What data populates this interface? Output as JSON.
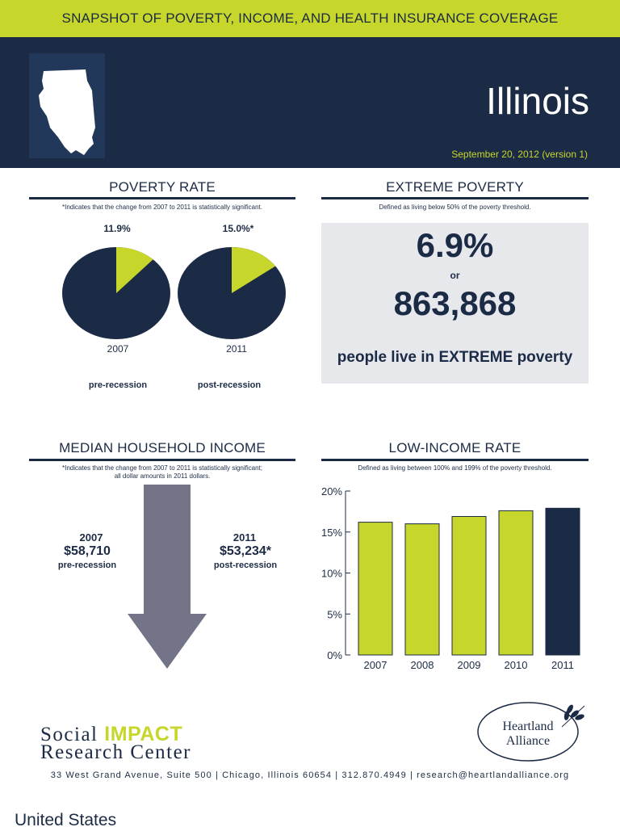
{
  "banner": {
    "title": "SNAPSHOT OF POVERTY, INCOME, AND HEALTH INSURANCE COVERAGE"
  },
  "header": {
    "state": "Illinois",
    "date": "September 20, 2012 (version 1)"
  },
  "poverty_rate": {
    "title": "POVERTY RATE",
    "note": "*Indicates that the change from 2007 to 2011 is statistically significant.",
    "pies": [
      {
        "label": "11.9%",
        "year": "2007",
        "value": 11.9,
        "sub": "pre-recession"
      },
      {
        "label": "15.0%*",
        "year": "2011",
        "value": 15.0,
        "sub": "post-recession"
      }
    ]
  },
  "extreme_poverty": {
    "title": "EXTREME POVERTY",
    "note": "Defined as living below 50% of the poverty threshold.",
    "percent": "6.9%",
    "or": "or",
    "count": "863,868",
    "text": "people live in EXTREME poverty"
  },
  "median_income": {
    "title": "MEDIAN HOUSEHOLD INCOME",
    "note_line1": "*Indicates that the change from 2007 to 2011 is statistically significant;",
    "note_line2": "all dollar amounts in 2011 dollars.",
    "before": {
      "year": "2007",
      "value": "$58,710",
      "sub": "pre-recession"
    },
    "after": {
      "year": "2011",
      "value": "$53,234*",
      "sub": "post-recession"
    }
  },
  "low_income": {
    "title": "LOW-INCOME RATE",
    "note": "Defined as living between 100% and 199% of the poverty threshold."
  },
  "chart_data": {
    "type": "bar",
    "categories": [
      "2007",
      "2008",
      "2009",
      "2010",
      "2011"
    ],
    "values": [
      16.2,
      16.0,
      16.9,
      17.6,
      17.9
    ],
    "ylim": [
      0,
      20
    ],
    "yticks": [
      "0%",
      "5%",
      "10%",
      "15%",
      "20%"
    ],
    "grid": false,
    "colors": {
      "default": "#c6d62a",
      "highlight": "#1c2b45"
    }
  },
  "footer": {
    "org1_part1": "Social ",
    "org1_part2": "IMPACT",
    "org1_line2": "Research Center",
    "org2_line1": "Heartland",
    "org2_line2": "Alliance",
    "address": "33 West Grand Avenue, Suite 500 | Chicago, Illinois 60654 | 312.870.4949 | research@heartlandalliance.org"
  },
  "bottom": {
    "label": "United States"
  },
  "colors": {
    "navy": "#1c2b45",
    "lime": "#c6d62a",
    "arrow": "#737487",
    "panel": "#e6e8ec"
  }
}
